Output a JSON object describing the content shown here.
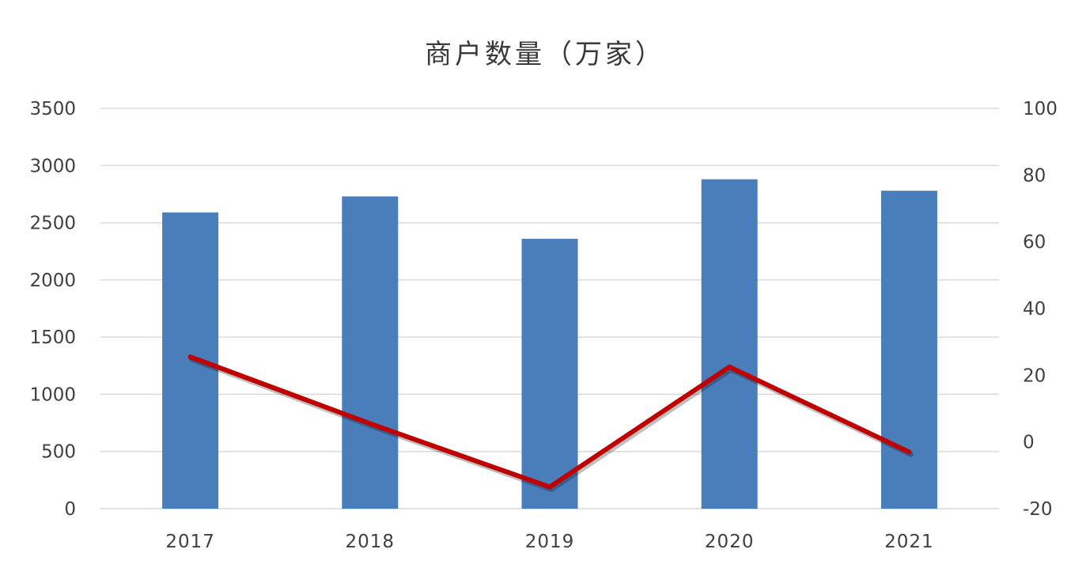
{
  "chart_data": {
    "type": "bar",
    "title": "商户数量（万家）",
    "categories": [
      "2017",
      "2018",
      "2019",
      "2020",
      "2021"
    ],
    "series": [
      {
        "type": "bar",
        "axis": "left",
        "color": "#4a7ebb",
        "values": [
          2590,
          2730,
          2360,
          2880,
          2780
        ]
      },
      {
        "type": "line",
        "axis": "right",
        "color": "#c00000",
        "values": [
          25.5,
          5.5,
          -13.5,
          22.5,
          -3
        ]
      }
    ],
    "y_left": {
      "min": 0,
      "max": 3500,
      "ticks": [
        "0",
        "500",
        "1000",
        "1500",
        "2000",
        "2500",
        "3000",
        "3500"
      ]
    },
    "y_right": {
      "min": -20,
      "max": 100,
      "ticks": [
        "-20",
        "0",
        "20",
        "40",
        "60",
        "80",
        "100"
      ]
    },
    "grid": true,
    "legend": "none",
    "gridline_color": "#d9d9d9"
  }
}
